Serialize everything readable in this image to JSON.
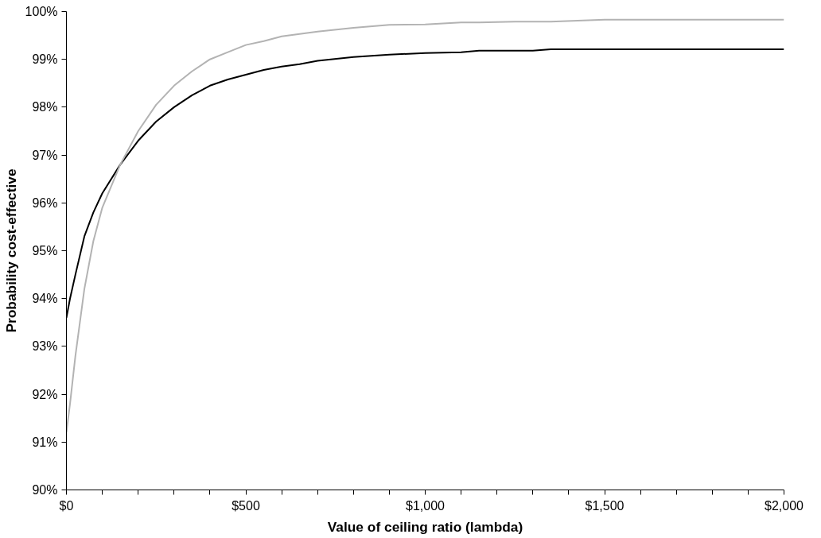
{
  "chart_data": {
    "type": "line",
    "xlabel": "Value of ceiling ratio (lambda)",
    "ylabel": "Probability cost-effective",
    "xlim": [
      0,
      2000
    ],
    "ylim": [
      90,
      100
    ],
    "xticks": [
      {
        "value": 0,
        "label": "$0"
      },
      {
        "value": 100,
        "label": null
      },
      {
        "value": 200,
        "label": null
      },
      {
        "value": 300,
        "label": null
      },
      {
        "value": 400,
        "label": null
      },
      {
        "value": 500,
        "label": "$500"
      },
      {
        "value": 600,
        "label": null
      },
      {
        "value": 700,
        "label": null
      },
      {
        "value": 800,
        "label": null
      },
      {
        "value": 900,
        "label": null
      },
      {
        "value": 1000,
        "label": "$1,000"
      },
      {
        "value": 1100,
        "label": null
      },
      {
        "value": 1200,
        "label": null
      },
      {
        "value": 1300,
        "label": null
      },
      {
        "value": 1400,
        "label": null
      },
      {
        "value": 1500,
        "label": "$1,500"
      },
      {
        "value": 1600,
        "label": null
      },
      {
        "value": 1700,
        "label": null
      },
      {
        "value": 1800,
        "label": null
      },
      {
        "value": 1900,
        "label": null
      },
      {
        "value": 2000,
        "label": "$2,000"
      }
    ],
    "yticks": [
      {
        "value": 90,
        "label": "90%"
      },
      {
        "value": 91,
        "label": "91%"
      },
      {
        "value": 92,
        "label": "92%"
      },
      {
        "value": 93,
        "label": "93%"
      },
      {
        "value": 94,
        "label": "94%"
      },
      {
        "value": 95,
        "label": "95%"
      },
      {
        "value": 96,
        "label": "96%"
      },
      {
        "value": 97,
        "label": "97%"
      },
      {
        "value": 98,
        "label": "98%"
      },
      {
        "value": 99,
        "label": "99%"
      },
      {
        "value": 100,
        "label": "100%"
      }
    ],
    "grid": false,
    "marker": "none",
    "line_style": "solid",
    "x": [
      0,
      10,
      25,
      50,
      75,
      100,
      150,
      200,
      250,
      300,
      350,
      400,
      450,
      500,
      550,
      600,
      650,
      700,
      800,
      900,
      1000,
      1100,
      1150,
      1250,
      1300,
      1350,
      1500,
      2000
    ],
    "series": [
      {
        "color": "#000000",
        "values": [
          93.6,
          94.0,
          94.5,
          95.3,
          95.8,
          96.2,
          96.8,
          97.3,
          97.7,
          98.0,
          98.25,
          98.45,
          98.58,
          98.68,
          98.78,
          98.85,
          98.9,
          98.97,
          99.05,
          99.1,
          99.13,
          99.15,
          99.18,
          99.18,
          99.18,
          99.21,
          99.21,
          99.21
        ]
      },
      {
        "color": "#b3b3b3",
        "values": [
          91.2,
          91.8,
          92.8,
          94.2,
          95.2,
          95.9,
          96.8,
          97.5,
          98.05,
          98.45,
          98.75,
          99.0,
          99.15,
          99.3,
          99.38,
          99.48,
          99.53,
          99.58,
          99.66,
          99.72,
          99.73,
          99.77,
          99.77,
          99.79,
          99.79,
          99.79,
          99.83,
          99.83
        ]
      }
    ]
  }
}
